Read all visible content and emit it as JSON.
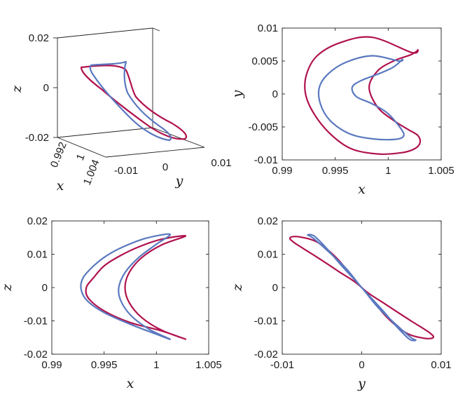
{
  "colors": {
    "series_a": "#B0124E",
    "series_b": "#5A78BF"
  },
  "chart_data": [
    {
      "type": "line",
      "panel": "3d",
      "projection": "3d",
      "xlabel": "x",
      "ylabel": "y",
      "zlabel": "z",
      "xticks": [
        "0.992",
        "1",
        "1.004"
      ],
      "yticks": [
        "-0.01",
        "0",
        "0.01"
      ],
      "zticks": [
        "0.02",
        "0",
        "-0.02"
      ],
      "xlim": [
        0.99,
        1.005
      ],
      "ylim": [
        -0.015,
        0.01
      ],
      "zlim": [
        -0.02,
        0.02
      ],
      "grid": false,
      "legend": "none",
      "series": [
        {
          "color": "#B0124E"
        },
        {
          "color": "#5A78BF"
        }
      ]
    },
    {
      "type": "line",
      "panel": "xy",
      "xlabel": "x",
      "ylabel": "y",
      "xlim": [
        0.99,
        1.005
      ],
      "ylim": [
        -0.01,
        0.01
      ],
      "xticks": [
        "0.99",
        "0.995",
        "1",
        "1.005"
      ],
      "yticks": [
        "0.01",
        "0.005",
        "0",
        "-0.005",
        "-0.01"
      ],
      "grid": false,
      "legend": "none",
      "series": [
        {
          "color": "#B0124E",
          "x": [
            1.0022,
            0.9985,
            0.9955,
            0.9933,
            0.9923,
            0.9922,
            0.993,
            0.9945,
            0.9965,
            0.999,
            1.0013,
            1.0025,
            1.003,
            1.0028,
            1.0019,
            1.0005,
            0.999,
            0.9982,
            0.999,
            1.0005,
            1.0022,
            1.0028,
            1.0022
          ],
          "y": [
            0.0063,
            0.0086,
            0.0078,
            0.0058,
            0.003,
            0.0,
            -0.003,
            -0.006,
            -0.0083,
            -0.0091,
            -0.0089,
            -0.0083,
            -0.0074,
            -0.0063,
            -0.0054,
            -0.004,
            -0.002,
            0.001,
            0.0035,
            0.005,
            0.006,
            0.0067,
            0.0063
          ]
        },
        {
          "color": "#5A78BF",
          "x": [
            1.001,
            0.9985,
            0.996,
            0.9943,
            0.9935,
            0.9936,
            0.9945,
            0.9963,
            0.9985,
            1.0005,
            1.0014,
            1.0013,
            1.0,
            0.9985,
            0.997,
            0.9966,
            0.9974,
            0.999,
            1.0004,
            1.0013,
            1.001
          ],
          "y": [
            0.005,
            0.0058,
            0.0048,
            0.003,
            0.001,
            -0.0015,
            -0.004,
            -0.006,
            -0.0068,
            -0.0069,
            -0.0065,
            -0.0055,
            -0.003,
            -0.0015,
            -0.0004,
            0.001,
            0.002,
            0.003,
            0.004,
            0.0052,
            0.005
          ]
        }
      ]
    },
    {
      "type": "line",
      "panel": "xz",
      "xlabel": "x",
      "ylabel": "z",
      "xlim": [
        0.99,
        1.005
      ],
      "ylim": [
        -0.02,
        0.02
      ],
      "xticks": [
        "0.99",
        "0.995",
        "1",
        "1.005"
      ],
      "yticks": [
        "0.02",
        "0.01",
        "0",
        "-0.01",
        "-0.02"
      ],
      "grid": false,
      "legend": "none",
      "series": [
        {
          "color": "#B0124E",
          "x": [
            1.0028,
            1.0005,
            0.9983,
            0.9965,
            0.995,
            0.994,
            0.9933,
            0.9935,
            0.995,
            0.9975,
            1.0005,
            1.0028,
            1.0005,
            0.9986,
            0.9974,
            0.997,
            0.9974,
            0.9986,
            1.0005,
            1.0028
          ],
          "y": [
            0.0155,
            0.0145,
            0.0122,
            0.0095,
            0.0065,
            0.003,
            0.0,
            -0.0032,
            -0.007,
            -0.0105,
            -0.013,
            -0.0155,
            -0.0128,
            -0.009,
            -0.0045,
            0.0,
            0.0045,
            0.009,
            0.0128,
            0.0155
          ]
        },
        {
          "color": "#5A78BF",
          "x": [
            1.0013,
            0.999,
            0.9968,
            0.9952,
            0.994,
            0.993,
            0.9928,
            0.9934,
            0.995,
            0.9975,
            1.0,
            1.0013,
            0.9993,
            0.9976,
            0.9966,
            0.9964,
            0.997,
            0.9983,
            1.0,
            1.0013
          ],
          "y": [
            0.016,
            0.0148,
            0.0122,
            0.0095,
            0.0065,
            0.003,
            -0.0005,
            -0.004,
            -0.0075,
            -0.011,
            -0.014,
            -0.0155,
            -0.0125,
            -0.0085,
            -0.004,
            0.0,
            0.0045,
            0.009,
            0.013,
            0.016
          ]
        }
      ]
    },
    {
      "type": "line",
      "panel": "yz",
      "xlabel": "y",
      "ylabel": "z",
      "xlim": [
        -0.01,
        0.01
      ],
      "ylim": [
        -0.02,
        0.02
      ],
      "xticks": [
        "-0.01",
        "0",
        "0.01"
      ],
      "yticks": [
        "0.02",
        "0.01",
        "0",
        "-0.01",
        "-0.02"
      ],
      "grid": false,
      "legend": "none",
      "series": [
        {
          "color": "#B0124E",
          "x": [
            0,
            -0.003,
            -0.0062,
            -0.0085,
            -0.009,
            -0.0078,
            -0.0055,
            -0.003,
            0,
            0.003,
            0.0062,
            0.0085,
            0.009,
            0.0078,
            0.0055,
            0.003,
            0
          ],
          "y": [
            0,
            0.005,
            0.01,
            0.0135,
            0.015,
            0.0152,
            0.0135,
            0.0085,
            0,
            -0.005,
            -0.01,
            -0.0135,
            -0.015,
            -0.0152,
            -0.0135,
            -0.0085,
            0
          ]
        },
        {
          "color": "#5A78BF",
          "x": [
            0,
            -0.002,
            -0.0045,
            -0.0062,
            -0.0068,
            -0.006,
            -0.0045,
            -0.0025,
            0,
            0.002,
            0.0045,
            0.0062,
            0.0068,
            0.006,
            0.0045,
            0.0025,
            0
          ],
          "y": [
            0,
            0.0058,
            0.0115,
            0.015,
            0.0158,
            0.0155,
            0.012,
            0.0065,
            0,
            -0.0058,
            -0.0115,
            -0.015,
            -0.0158,
            -0.0155,
            -0.012,
            -0.0065,
            0
          ]
        }
      ]
    }
  ]
}
